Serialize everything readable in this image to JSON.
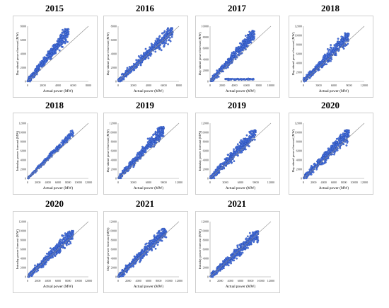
{
  "colors": {
    "point_fill": "#4a74e0",
    "point_stroke": "#1f3f9e",
    "diagonal": "#8a8a8a",
    "axis": "#9a9a9a",
    "tick_text": "#333333"
  },
  "chart_data": [
    {
      "type": "scatter",
      "title": "2015",
      "xlabel": "Actual power (MW)",
      "ylabel": "Day-ahead power forecast (MW)",
      "xlim": [
        0,
        8000
      ],
      "ylim": [
        0,
        8000
      ],
      "xticks": [
        "0",
        "2000",
        "4000",
        "6000",
        "8000"
      ],
      "yticks": [
        "0",
        "2000",
        "4000",
        "6000",
        "8000"
      ],
      "series": [
        {
          "pattern": "cloud",
          "x_max": 5400,
          "y_max": 7600
        }
      ]
    },
    {
      "type": "scatter",
      "title": "2016",
      "xlabel": "Actual power (MW)",
      "ylabel": "Day-ahead power forecast (MW)",
      "xlim": [
        0,
        8000
      ],
      "ylim": [
        0,
        8000
      ],
      "xticks": [
        "0",
        "2000",
        "4000",
        "6000",
        "8000"
      ],
      "yticks": [
        "0",
        "2000",
        "4000",
        "6000",
        "8000"
      ],
      "series": [
        {
          "pattern": "cloud",
          "x_max": 7200,
          "y_max": 7800
        }
      ]
    },
    {
      "type": "scatter",
      "title": "2017",
      "xlabel": "Actual power (MW)",
      "ylabel": "Day-ahead power forecast (MW)",
      "xlim": [
        0,
        10000
      ],
      "ylim": [
        0,
        10000
      ],
      "xticks": [
        "0",
        "2000",
        "4000",
        "6000",
        "8000",
        "10000"
      ],
      "yticks": [
        "0",
        "2000",
        "4000",
        "6000",
        "8000",
        "10000"
      ],
      "series": [
        {
          "pattern": "cloud",
          "x_max": 7300,
          "y_max": 9200
        },
        {
          "pattern": "flat",
          "x_min": 2500,
          "x_max": 7200,
          "y": 400
        }
      ]
    },
    {
      "type": "scatter",
      "title": "2018",
      "xlabel": "Actual power (MW)",
      "ylabel": "Day-ahead power forecast (MW)",
      "xlim": [
        0,
        12000
      ],
      "ylim": [
        0,
        12000
      ],
      "xticks": [
        "0",
        "3000",
        "6000",
        "9000",
        "12000"
      ],
      "yticks": [
        "0",
        "2000",
        "4000",
        "6000",
        "8000",
        "10000",
        "12000"
      ],
      "series": [
        {
          "pattern": "cloud",
          "x_max": 9000,
          "y_max": 10500
        }
      ]
    },
    {
      "type": "scatter",
      "title": "2018",
      "xlabel": "Actual power (MW)",
      "ylabel": "Intraday power forecast (MW)",
      "xlim": [
        0,
        12000
      ],
      "ylim": [
        0,
        12000
      ],
      "xticks": [
        "0",
        "2000",
        "4000",
        "6000",
        "8000",
        "10000",
        "12000"
      ],
      "yticks": [
        "0",
        "2000",
        "4000",
        "6000",
        "8000",
        "10000",
        "12000"
      ],
      "series": [
        {
          "pattern": "narrow",
          "x_max": 9000,
          "y_max": 10500
        }
      ]
    },
    {
      "type": "scatter",
      "title": "2019",
      "xlabel": "Actual power (MW)",
      "ylabel": "Day-ahead power forecast (MW)",
      "xlim": [
        0,
        12000
      ],
      "ylim": [
        0,
        12000
      ],
      "xticks": [
        "0",
        "3000",
        "6000",
        "9000",
        "12000"
      ],
      "yticks": [
        "0",
        "2000",
        "4000",
        "6000",
        "8000",
        "10000",
        "12000"
      ],
      "series": [
        {
          "pattern": "cloud",
          "x_max": 9000,
          "y_max": 11200
        }
      ]
    },
    {
      "type": "scatter",
      "title": "2019",
      "xlabel": "Actual power (MW)",
      "ylabel": "Intraday power forecast (MW)",
      "xlim": [
        0,
        12000
      ],
      "ylim": [
        0,
        12000
      ],
      "xticks": [
        "0",
        "3000",
        "6000",
        "9000",
        "12000"
      ],
      "yticks": [
        "0",
        "2000",
        "4000",
        "6000",
        "8000",
        "10000",
        "12000"
      ],
      "series": [
        {
          "pattern": "cloud",
          "x_max": 9000,
          "y_max": 10500
        }
      ]
    },
    {
      "type": "scatter",
      "title": "2020",
      "xlabel": "Actual power (MW)",
      "ylabel": "Day-ahead power forecast (MW)",
      "xlim": [
        0,
        12000
      ],
      "ylim": [
        0,
        12000
      ],
      "xticks": [
        "0",
        "2000",
        "4000",
        "6000",
        "8000",
        "10000",
        "12000"
      ],
      "yticks": [
        "0",
        "2000",
        "4000",
        "6000",
        "8000",
        "10000",
        "12000"
      ],
      "series": [
        {
          "pattern": "cloud",
          "x_max": 9000,
          "y_max": 10500
        }
      ]
    },
    {
      "type": "scatter",
      "title": "2020",
      "xlabel": "Actual power (MW)",
      "ylabel": "Intraday power forecast (MW)",
      "xlim": [
        0,
        12000
      ],
      "ylim": [
        0,
        12000
      ],
      "xticks": [
        "0",
        "2000",
        "4000",
        "6000",
        "8000",
        "10000",
        "12000"
      ],
      "yticks": [
        "0",
        "2000",
        "4000",
        "6000",
        "8000",
        "10000",
        "12000"
      ],
      "series": [
        {
          "pattern": "cloud",
          "x_max": 9000,
          "y_max": 10000
        }
      ]
    },
    {
      "type": "scatter",
      "title": "2021",
      "xlabel": "Actual power (MW)",
      "ylabel": "Day-ahead power forecast (MW)",
      "xlim": [
        0,
        12000
      ],
      "ylim": [
        0,
        12000
      ],
      "xticks": [
        "0",
        "2000",
        "4000",
        "6000",
        "8000",
        "10000",
        "12000"
      ],
      "yticks": [
        "0",
        "2000",
        "4000",
        "6000",
        "8000",
        "10000",
        "12000"
      ],
      "series": [
        {
          "pattern": "cloud",
          "x_max": 9500,
          "y_max": 10500
        }
      ]
    },
    {
      "type": "scatter",
      "title": "2021",
      "xlabel": "Actual power (MW)",
      "ylabel": "Intraday power forecast (MW)",
      "xlim": [
        0,
        12000
      ],
      "ylim": [
        0,
        12000
      ],
      "xticks": [
        "0",
        "2000",
        "4000",
        "6000",
        "8000",
        "10000",
        "12000"
      ],
      "yticks": [
        "0",
        "2000",
        "4000",
        "6000",
        "8000",
        "10000",
        "12000"
      ],
      "series": [
        {
          "pattern": "cloud",
          "x_max": 9500,
          "y_max": 10000
        }
      ]
    }
  ]
}
